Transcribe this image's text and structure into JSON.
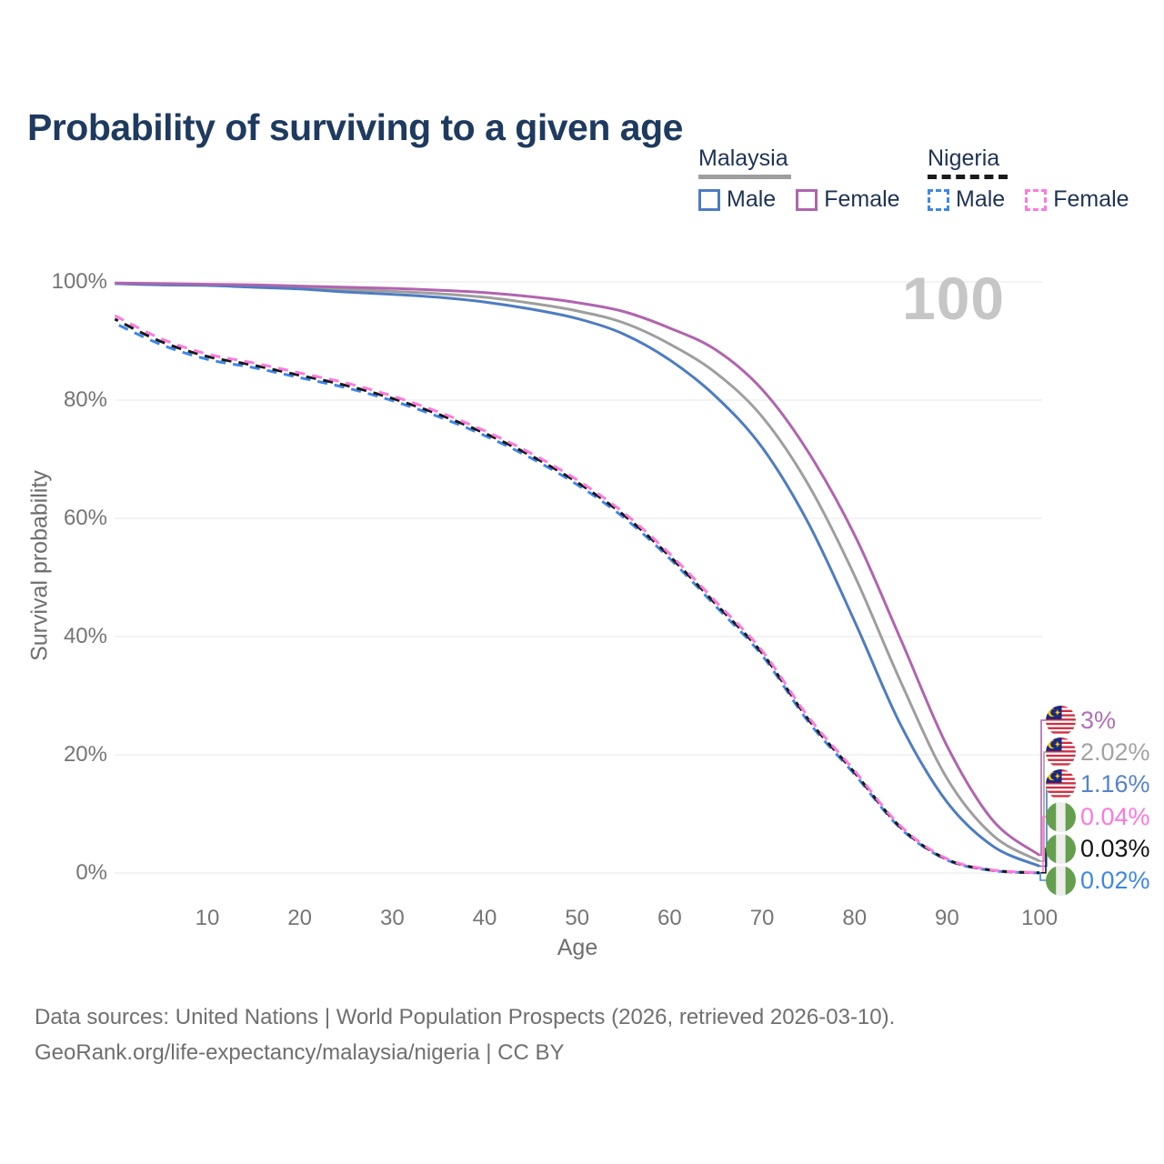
{
  "title": "Probability of surviving to a given age",
  "watermark": "100",
  "legend": {
    "groups": [
      {
        "label": "Malaysia",
        "line_style": "solid",
        "line_color": "#9e9e9e",
        "items": [
          {
            "label": "Male",
            "color": "#4d7cc1",
            "dashed": false
          },
          {
            "label": "Female",
            "color": "#b164ae",
            "dashed": false
          }
        ]
      },
      {
        "label": "Nigeria",
        "line_style": "dashed",
        "line_color": "#1a1a1a",
        "items": [
          {
            "label": "Male",
            "color": "#3f86e8",
            "dashed": true
          },
          {
            "label": "Female",
            "color": "#ff79dc",
            "dashed": true
          }
        ]
      }
    ]
  },
  "chart_data": {
    "type": "line",
    "title": "Probability of surviving to a given age",
    "xlabel": "Age",
    "ylabel": "Survival probability",
    "xlim": [
      0,
      100
    ],
    "ylim": [
      0,
      100
    ],
    "grid": true,
    "legend_position": "top-right",
    "xticks": [
      "10",
      "20",
      "30",
      "40",
      "50",
      "60",
      "70",
      "80",
      "90",
      "100"
    ],
    "xtick_values": [
      10,
      20,
      30,
      40,
      50,
      60,
      70,
      80,
      90,
      100
    ],
    "yticks": [
      "0%",
      "20%",
      "40%",
      "60%",
      "80%",
      "100%"
    ],
    "ytick_values": [
      0,
      20,
      40,
      60,
      80,
      100
    ],
    "x": [
      0,
      5,
      10,
      15,
      20,
      25,
      30,
      35,
      40,
      45,
      50,
      55,
      60,
      65,
      70,
      75,
      80,
      85,
      90,
      95,
      100
    ],
    "series": [
      {
        "id": "malaysia-both",
        "name": "Malaysia (both sexes)",
        "country": "Malaysia",
        "sex": "Both",
        "color": "#9e9e9e",
        "dashed": false,
        "end_label": "2.02%",
        "values": [
          99.7,
          99.6,
          99.5,
          99.3,
          99.0,
          98.7,
          98.4,
          98.0,
          97.4,
          96.4,
          95.1,
          93.1,
          89.5,
          84.6,
          77.2,
          65.7,
          50.3,
          32.3,
          16.0,
          6.3,
          2.02
        ]
      },
      {
        "id": "malaysia-male",
        "name": "Malaysia Male",
        "country": "Malaysia",
        "sex": "Male",
        "color": "#4d7cc1",
        "dashed": false,
        "end_label": "1.16%",
        "values": [
          99.7,
          99.5,
          99.4,
          99.1,
          98.8,
          98.3,
          97.9,
          97.4,
          96.6,
          95.4,
          93.8,
          91.2,
          86.8,
          80.6,
          72.0,
          59.2,
          42.6,
          25.0,
          12.0,
          4.5,
          1.16
        ]
      },
      {
        "id": "malaysia-female",
        "name": "Malaysia Female",
        "country": "Malaysia",
        "sex": "Female",
        "color": "#b164ae",
        "dashed": false,
        "end_label": "3%",
        "values": [
          99.8,
          99.7,
          99.6,
          99.5,
          99.3,
          99.1,
          98.9,
          98.6,
          98.2,
          97.5,
          96.5,
          95.0,
          92.2,
          88.5,
          81.8,
          71.2,
          57.2,
          39.5,
          21.5,
          8.8,
          3.0
        ]
      },
      {
        "id": "nigeria-male",
        "name": "Nigeria Male",
        "country": "Nigeria",
        "sex": "Male",
        "color": "#3f86e8",
        "dashed": true,
        "dash_offset": 14,
        "end_label": "0.02%",
        "values": [
          93.0,
          89.4,
          86.9,
          85.5,
          83.8,
          82.1,
          79.9,
          77.2,
          74.0,
          70.2,
          65.7,
          60.2,
          53.2,
          45.1,
          36.8,
          25.6,
          16.7,
          7.5,
          2.2,
          0.4,
          0.02
        ]
      },
      {
        "id": "nigeria-both",
        "name": "Nigeria (both sexes)",
        "country": "Nigeria",
        "sex": "Both",
        "color": "#1a1a1a",
        "dashed": true,
        "dash_offset": 7,
        "end_label": "0.03%",
        "values": [
          93.7,
          89.9,
          87.4,
          85.9,
          84.2,
          82.5,
          80.3,
          77.6,
          74.4,
          70.6,
          66.1,
          60.6,
          53.6,
          45.5,
          37.2,
          26.0,
          17.0,
          7.7,
          2.3,
          0.45,
          0.03
        ]
      },
      {
        "id": "nigeria-female",
        "name": "Nigeria Female",
        "country": "Nigeria",
        "sex": "Female",
        "color": "#ff79dc",
        "dashed": true,
        "dash_offset": 0,
        "end_label": "0.04%",
        "values": [
          94.3,
          90.4,
          87.8,
          86.3,
          84.6,
          82.9,
          80.7,
          78.0,
          74.8,
          71.0,
          66.5,
          61.0,
          54.0,
          45.9,
          37.6,
          26.4,
          17.3,
          7.9,
          2.4,
          0.5,
          0.04
        ]
      }
    ]
  },
  "end_labels": [
    {
      "text": "3%",
      "color": "#b06fb7",
      "flag": "malaysia",
      "series": "malaysia-female"
    },
    {
      "text": "2.02%",
      "color": "#a3a3a3",
      "flag": "malaysia",
      "series": "malaysia-both"
    },
    {
      "text": "1.16%",
      "color": "#5583cc",
      "flag": "malaysia",
      "series": "malaysia-male"
    },
    {
      "text": "0.04%",
      "color": "#ff77dd",
      "flag": "nigeria",
      "series": "nigeria-female"
    },
    {
      "text": "0.03%",
      "color": "#141414",
      "flag": "nigeria",
      "series": "nigeria-both"
    },
    {
      "text": "0.02%",
      "color": "#3d87e8",
      "flag": "nigeria",
      "series": "nigeria-male"
    }
  ],
  "footer": {
    "line1": "Data sources: United Nations | World Population Prospects (2026, retrieved 2026-03-10).",
    "line2": "GeoRank.org/life-expectancy/malaysia/nigeria | CC BY"
  },
  "theme": {
    "title_color": "#1e3a5f",
    "axis_text_color": "#757575",
    "grid_color": "#e7e7e7",
    "watermark_color": "#c6c6c6",
    "footer_color": "#6f6f6f"
  }
}
